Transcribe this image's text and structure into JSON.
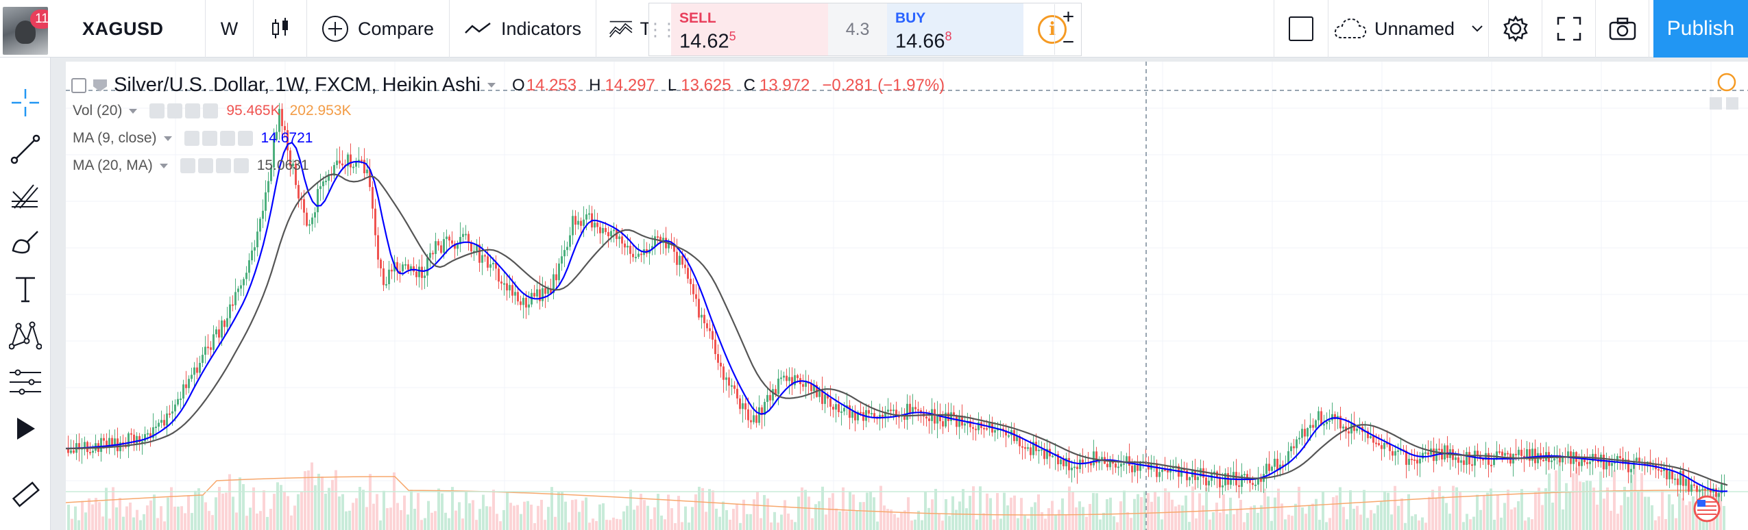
{
  "user": {
    "notification_count": "11"
  },
  "toolbar": {
    "symbol": "XAGUSD",
    "interval": "W",
    "compare_label": "Compare",
    "indicators_label": "Indicators",
    "templates_label": "T",
    "layout_name": "Unnamed",
    "publish_label": "Publish"
  },
  "trade": {
    "sell_label": "SELL",
    "sell_price_main": "14.62",
    "sell_price_sup": "5",
    "spread": "4.3",
    "buy_label": "BUY",
    "buy_price_main": "14.66",
    "buy_price_sup": "8",
    "info": "i",
    "plus": "+",
    "minus": "−"
  },
  "chart": {
    "title": "Silver/U.S. Dollar, 1W, FXCM, Heikin Ashi",
    "ohlc": {
      "o_label": "O",
      "o": "14.253",
      "h_label": "H",
      "h": "14.297",
      "l_label": "L",
      "l": "13.625",
      "c_label": "C",
      "c": "13.972",
      "change": "−0.281 (−1.97%)"
    },
    "indicators": [
      {
        "name": "Vol (20)",
        "value1": "95.465K",
        "value2": "202.953K"
      },
      {
        "name": "MA (9, close)",
        "value1": "14.6721"
      },
      {
        "name": "MA (20, MA)",
        "value1": "15.0631"
      }
    ]
  },
  "colors": {
    "up": "#26a69a",
    "candle_up": "#4caf7d",
    "candle_down": "#ef5350",
    "ma9": "#0000ff",
    "ma20": "#555555",
    "vol_ma": "#f7a76c",
    "accent": "#2196f3",
    "badge": "#e83e5b"
  },
  "icons": {
    "crosshair": "crosshair-icon",
    "trendline": "trend-line-icon",
    "fib": "fib-icon",
    "brush": "brush-icon",
    "text": "text-icon",
    "pattern": "pattern-icon",
    "measure": "measure-icon",
    "arrow": "arrow-icon",
    "ruler": "ruler-icon"
  }
}
